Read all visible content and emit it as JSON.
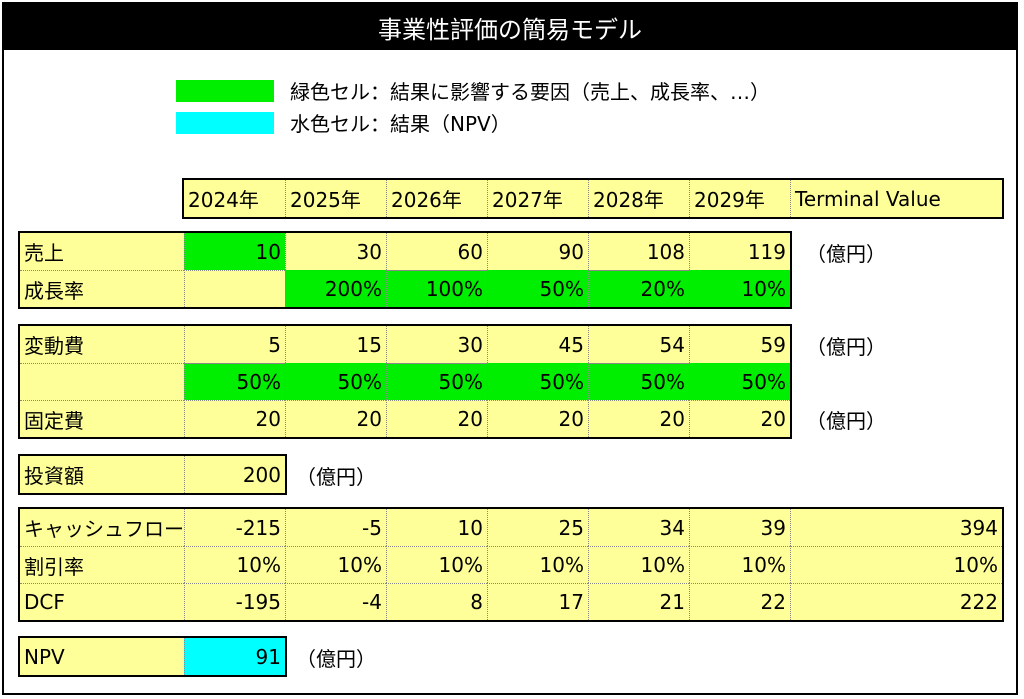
{
  "title": "事業性評価の簡易モデル",
  "legend": {
    "green": {
      "text": "緑色セル：結果に影響する要因（売上、成長率、…）",
      "color": "#00ee00"
    },
    "cyan": {
      "text": "水色セル：結果（NPV）",
      "color": "#00ffff"
    }
  },
  "header": [
    "2024年",
    "2025年",
    "2026年",
    "2027年",
    "2028年",
    "2029年",
    "Terminal Value"
  ],
  "unit": "（億円）",
  "sales": {
    "label": "売上",
    "values": [
      "10",
      "30",
      "60",
      "90",
      "108",
      "119"
    ],
    "growth_label": "成長率",
    "growth": [
      "",
      "200%",
      "100%",
      "50%",
      "20%",
      "10%"
    ]
  },
  "variable_cost": {
    "label": "変動費",
    "values": [
      "5",
      "15",
      "30",
      "45",
      "54",
      "59"
    ],
    "ratio_label": "",
    "ratio": [
      "50%",
      "50%",
      "50%",
      "50%",
      "50%",
      "50%"
    ]
  },
  "fixed_cost": {
    "label": "固定費",
    "values": [
      "20",
      "20",
      "20",
      "20",
      "20",
      "20"
    ]
  },
  "investment": {
    "label": "投資額",
    "value": "200"
  },
  "cashflow": {
    "label": "キャッシュフロー",
    "values": [
      "-215",
      "-5",
      "10",
      "25",
      "34",
      "39",
      "394"
    ],
    "discount_label": "割引率",
    "discount": [
      "10%",
      "10%",
      "10%",
      "10%",
      "10%",
      "10%",
      "10%"
    ],
    "dcf_label": "DCF",
    "dcf": [
      "-195",
      "-4",
      "8",
      "17",
      "21",
      "22",
      "222"
    ]
  },
  "npv": {
    "label": "NPV",
    "value": "91"
  }
}
